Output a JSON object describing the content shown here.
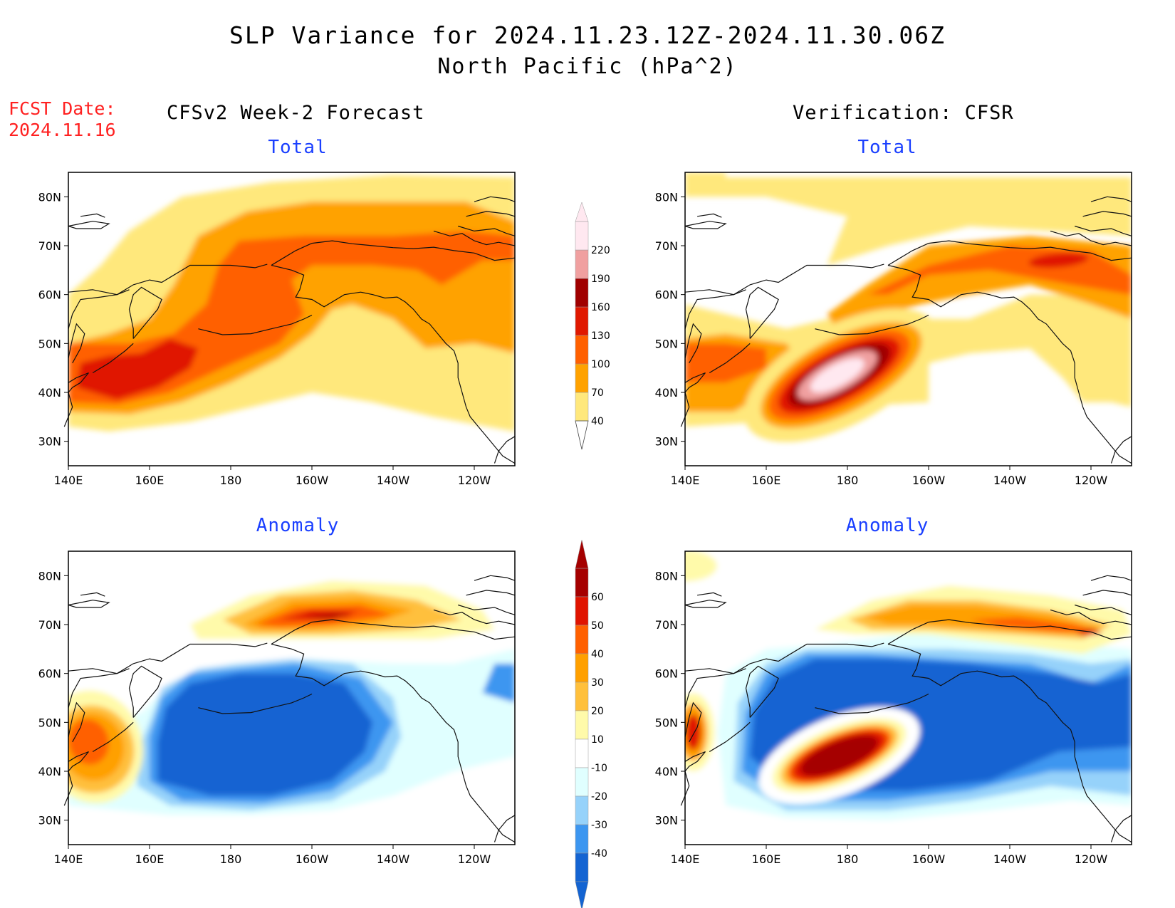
{
  "header": {
    "title": "SLP Variance for 2024.11.23.12Z-2024.11.30.06Z",
    "subtitle": "North Pacific (hPa^2)",
    "fcst_label": "FCST Date:",
    "fcst_date": "2024.11.16"
  },
  "columns": {
    "left": "CFSv2 Week-2 Forecast",
    "right": "Verification: CFSR"
  },
  "panels": {
    "top_left": "Total",
    "top_right": "Total",
    "bottom_left": "Anomaly",
    "bottom_right": "Anomaly"
  },
  "axes": {
    "lon_ticks": [
      "140E",
      "160E",
      "180",
      "160W",
      "140W",
      "120W"
    ],
    "lat_ticks": [
      "80N",
      "70N",
      "60N",
      "50N",
      "40N",
      "30N"
    ]
  },
  "colorbars": {
    "total": {
      "labels": [
        "40",
        "70",
        "100",
        "130",
        "160",
        "190",
        "220"
      ],
      "colors": [
        "#ffe87c",
        "#ffa200",
        "#ff6000",
        "#e01800",
        "#a00000",
        "#f0a0a0",
        "#ffe8f0"
      ]
    },
    "anomaly": {
      "labels": [
        "-40",
        "-30",
        "-20",
        "-10",
        "10",
        "20",
        "30",
        "40",
        "50",
        "60"
      ],
      "colors": [
        "#1464d2",
        "#3c96f0",
        "#96d2fa",
        "#e0ffff",
        "#ffffff",
        "#fffaaa",
        "#ffc03c",
        "#ffa000",
        "#ff6000",
        "#e01400",
        "#a50000"
      ]
    }
  },
  "chart_data": [
    {
      "type": "heatmap",
      "panel": "CFSv2 Week-2 Forecast — Total",
      "units": "hPa^2",
      "xlim": [
        "140E",
        "110W"
      ],
      "ylim": [
        "25N",
        "85N"
      ],
      "levels": [
        40,
        70,
        100,
        130,
        160,
        190,
        220
      ],
      "features": [
        {
          "region": "NW Pacific storm track (~165E, 43N)",
          "max_level": 130
        },
        {
          "region": "Bering Sea / Alaska band (~165W, 65N)",
          "max_level": 100
        },
        {
          "region": "Gulf of Alaska / N Canada (~130W, 60N)",
          "max_level": 100
        }
      ]
    },
    {
      "type": "heatmap",
      "panel": "Verification: CFSR — Total",
      "units": "hPa^2",
      "xlim": [
        "140E",
        "110W"
      ],
      "ylim": [
        "25N",
        "85N"
      ],
      "levels": [
        40,
        70,
        100,
        130,
        160,
        190,
        220
      ],
      "features": [
        {
          "region": "Central N Pacific (~178E, 42N)",
          "max_level": 220
        },
        {
          "region": "Arctic coast of Alaska/Canada (~125W, 66N)",
          "max_level": 130
        },
        {
          "region": "Japan / Kuril region (~145E, 47N)",
          "max_level": 100
        }
      ]
    },
    {
      "type": "heatmap",
      "panel": "CFSv2 Week-2 Forecast — Anomaly",
      "units": "hPa^2",
      "xlim": [
        "140E",
        "110W"
      ],
      "ylim": [
        "25N",
        "85N"
      ],
      "levels": [
        -40,
        -30,
        -20,
        -10,
        10,
        20,
        30,
        40,
        50,
        60
      ],
      "features": [
        {
          "region": "North Alaska / Arctic (~160W, 70N)",
          "max_level": 50
        },
        {
          "region": "North Pacific basin (~165W, 48N)",
          "min_level": -40
        },
        {
          "region": "Japan (~145E, 45N)",
          "max_level": 40
        }
      ]
    },
    {
      "type": "heatmap",
      "panel": "Verification: CFSR — Anomaly",
      "units": "hPa^2",
      "xlim": [
        "140E",
        "110W"
      ],
      "ylim": [
        "25N",
        "85N"
      ],
      "levels": [
        -40,
        -30,
        -20,
        -10,
        10,
        20,
        30,
        40,
        50,
        60
      ],
      "features": [
        {
          "region": "Central N Pacific (~178E, 42N)",
          "max_level": 60
        },
        {
          "region": "North Pacific basin (~160W, 52N)",
          "min_level": -40
        },
        {
          "region": "Arctic coast Alaska/Canada (~125W, 67N)",
          "max_level": 50
        }
      ]
    }
  ]
}
